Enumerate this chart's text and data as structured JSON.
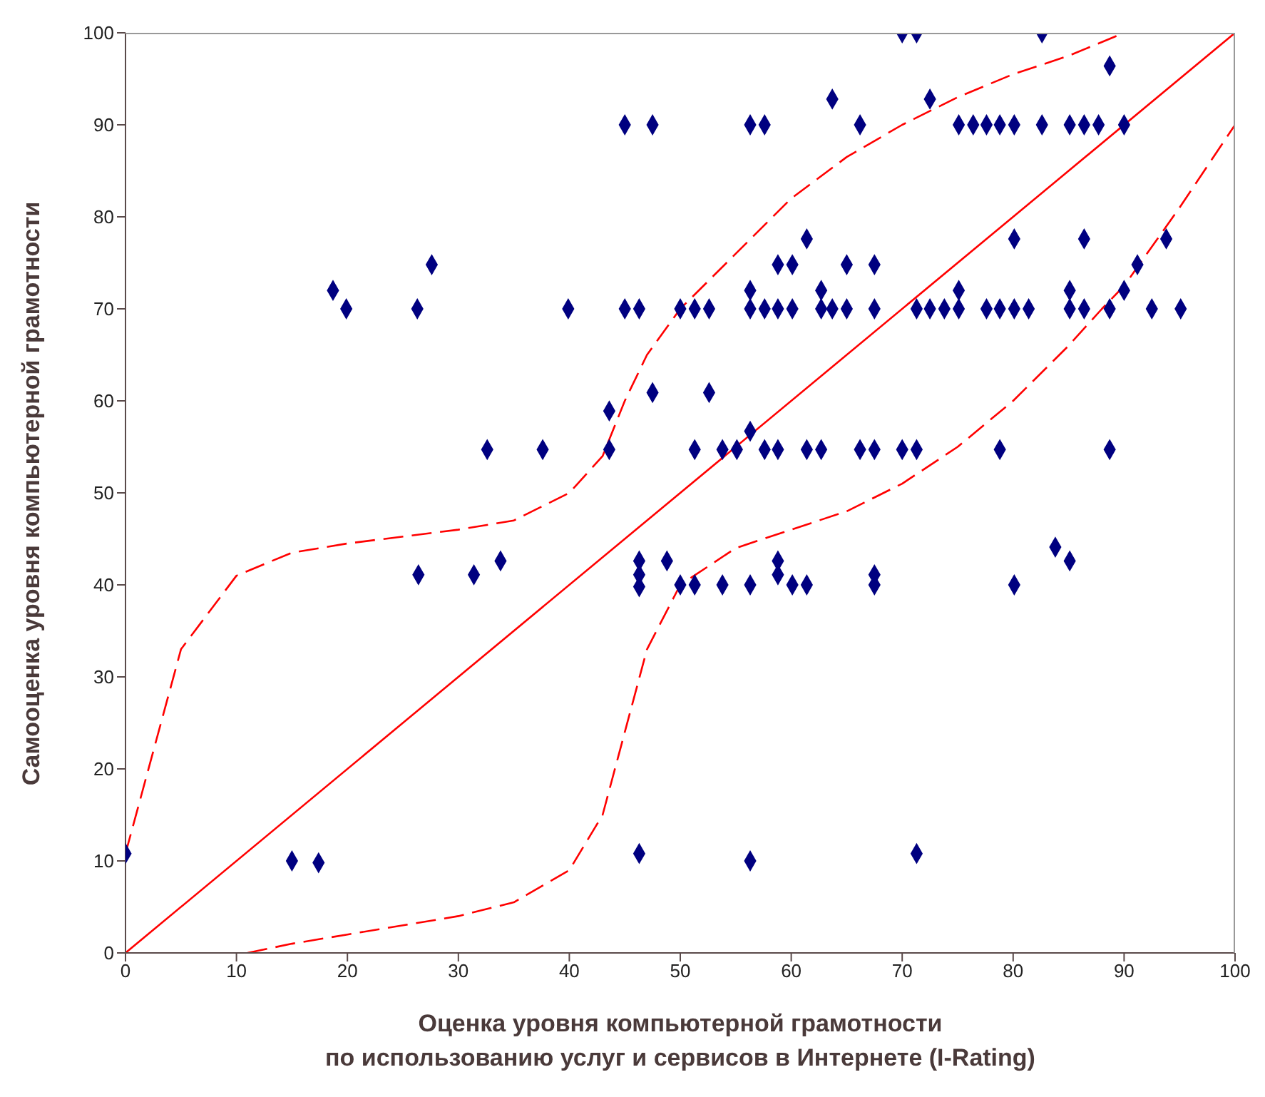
{
  "chart_data": {
    "type": "scatter",
    "xlabel": "Оценка уровня компьютерной грамотности\nпо использованию услуг и сервисов в Интернете (I-Rating)",
    "ylabel": "Самооценка уровня компьютерной грамотности",
    "xlim": [
      0,
      100
    ],
    "ylim": [
      0,
      100
    ],
    "xticks": [
      0,
      10,
      20,
      30,
      40,
      50,
      60,
      70,
      80,
      90,
      100
    ],
    "yticks": [
      0,
      10,
      20,
      30,
      40,
      50,
      60,
      70,
      80,
      90,
      100
    ],
    "grid": false,
    "series": [
      {
        "marker": "diamond",
        "color": "#000080",
        "x": [
          0,
          15,
          17.4,
          18.7,
          19.9,
          26.3,
          27.6,
          26.4,
          31.4,
          32.6,
          33.8,
          37.6,
          39.9,
          43.6,
          43.6,
          45,
          47.5,
          45,
          46.3,
          47.5,
          46.3,
          46.3,
          46.3,
          46.3,
          48.8,
          50,
          51.3,
          53.8,
          56.3,
          58.8,
          58.8,
          60.1,
          61.4,
          67.5,
          67.5,
          80.1,
          83.8,
          85.1,
          56.3,
          71.3,
          70,
          71.3,
          82.6,
          88.7,
          63.7,
          72.5,
          56.3,
          57.6,
          66.2,
          75.1,
          76.4,
          77.6,
          78.8,
          80.1,
          82.6,
          85.1,
          86.4,
          87.7,
          90,
          61.4,
          80.1,
          86.4,
          93.8,
          58.8,
          60.1,
          65,
          67.5,
          91.2,
          56.3,
          62.7,
          75.1,
          85.1,
          90,
          50,
          51.3,
          52.6,
          56.3,
          57.6,
          58.8,
          60.1,
          62.7,
          63.7,
          65,
          67.5,
          71.3,
          72.5,
          73.8,
          75.1,
          77.6,
          78.8,
          80.1,
          81.4,
          85.1,
          86.4,
          88.7,
          92.5,
          95.1,
          52.6,
          56.3,
          51.3,
          53.8,
          55.1,
          57.6,
          58.8,
          61.4,
          62.7,
          66.2,
          67.5,
          70,
          71.3,
          78.8,
          88.7
        ],
        "values": [
          10.8,
          10,
          9.8,
          72,
          70,
          70,
          74.8,
          41.1,
          41.1,
          54.7,
          42.6,
          54.7,
          70,
          58.9,
          54.7,
          90,
          90,
          70,
          70,
          60.9,
          42.6,
          41.1,
          39.8,
          10.8,
          42.6,
          40,
          40,
          40,
          40,
          42.6,
          41.1,
          40,
          40,
          41.1,
          40,
          40,
          44.1,
          42.6,
          10,
          10.8,
          100,
          100,
          100,
          96.4,
          92.8,
          92.8,
          90,
          90,
          90,
          90,
          90,
          90,
          90,
          90,
          90,
          90,
          90,
          90,
          90,
          77.6,
          77.6,
          77.6,
          77.6,
          74.8,
          74.8,
          74.8,
          74.8,
          74.8,
          72,
          72,
          72,
          72,
          72,
          70,
          70,
          70,
          70,
          70,
          70,
          70,
          70,
          70,
          70,
          70,
          70,
          70,
          70,
          70,
          70,
          70,
          70,
          70,
          70,
          70,
          70,
          70,
          70,
          60.9,
          56.7,
          54.7,
          54.7,
          54.7,
          54.7,
          54.7,
          54.7,
          54.7,
          54.7,
          54.7,
          54.7,
          54.7,
          54.7,
          54.7
        ]
      },
      {
        "type": "line",
        "marker": "none",
        "color": "#ff0000",
        "line_style": "solid",
        "x": [
          0,
          100
        ],
        "values": [
          0,
          100
        ]
      },
      {
        "type": "line",
        "marker": "none",
        "color": "#ff0000",
        "line_style": "dashed",
        "x": [
          0,
          5,
          10,
          15,
          20,
          30,
          35,
          40,
          43,
          45,
          47,
          50,
          55,
          60,
          65,
          70,
          75,
          80,
          85,
          90
        ],
        "values": [
          10.8,
          33,
          41,
          43.5,
          44.5,
          46,
          47,
          50,
          54,
          60,
          65,
          70,
          76,
          82,
          86.5,
          90,
          93,
          95.5,
          97.5,
          100
        ]
      },
      {
        "type": "line",
        "marker": "none",
        "color": "#ff0000",
        "line_style": "dashed",
        "x": [
          11,
          15,
          20,
          30,
          35,
          40,
          43,
          45,
          47,
          50,
          55,
          60,
          65,
          70,
          75,
          80,
          85,
          88,
          90,
          95,
          100
        ],
        "values": [
          0,
          1,
          2,
          4,
          5.5,
          9,
          15,
          24,
          33,
          40,
          44,
          46,
          48,
          51,
          55,
          60,
          66,
          70,
          72.5,
          81,
          90
        ]
      }
    ]
  }
}
